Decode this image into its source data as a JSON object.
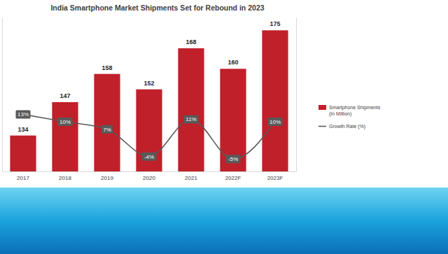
{
  "chart_data": {
    "type": "bar",
    "title": "India Smartphone Market Shipments Set for Rebound in 2023",
    "categories": [
      "2017",
      "2018",
      "2019",
      "2020",
      "2021",
      "2022F",
      "2023F"
    ],
    "series": [
      {
        "name": "Smartphone Shipments (In Million)",
        "type": "bar",
        "color": "#c0202a",
        "values": [
          134,
          147,
          158,
          152,
          168,
          160,
          175
        ]
      },
      {
        "name": "Growth Rate (%)",
        "type": "line",
        "axis": "y2",
        "color": "#595959",
        "values": [
          13,
          10,
          7,
          -4,
          11,
          -5,
          10
        ],
        "value_labels": [
          "13%",
          "10%",
          "7%",
          "-4%",
          "11%",
          "-5%",
          "10%"
        ]
      }
    ],
    "ylim": [
      120,
      180
    ],
    "yticks": [],
    "y2lim": [
      -10,
      52
    ],
    "y2ticks": [],
    "data_labels": true,
    "tick_labels": "x",
    "legend": "right"
  }
}
